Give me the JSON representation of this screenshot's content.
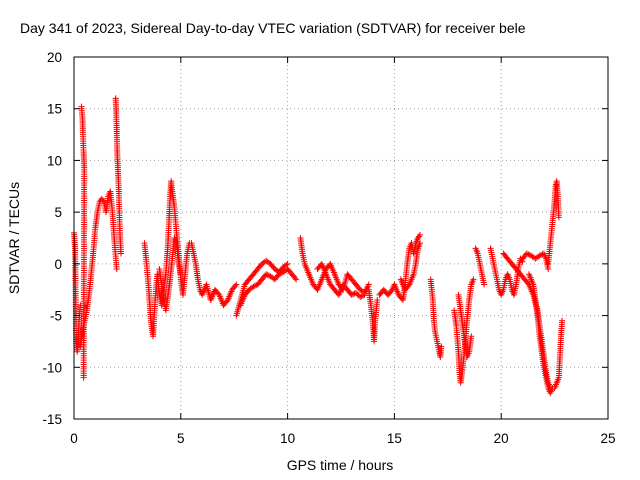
{
  "chart_data": {
    "type": "scatter",
    "title": "Day 341 of 2023, Sidereal Day-to-day VTEC variation (SDTVAR) for receiver bele",
    "xlabel": "GPS time / hours",
    "ylabel": "SDTVAR / TECUs",
    "xlim": [
      0,
      25
    ],
    "ylim": [
      -15,
      20
    ],
    "xticks": [
      0,
      5,
      10,
      15,
      20,
      25
    ],
    "yticks": [
      -15,
      -10,
      -5,
      0,
      5,
      10,
      15,
      20
    ],
    "xtick_labels": [
      "0",
      "5",
      "10",
      "15",
      "20",
      "25"
    ],
    "ytick_labels": [
      "-15",
      "-10",
      "-5",
      "0",
      "5",
      "10",
      "15",
      "20"
    ],
    "grid": true,
    "marker": "plus",
    "series": [
      {
        "name": "SDTVAR",
        "color": "#ff0000",
        "segments": [
          [
            [
              0.0,
              3.0
            ],
            [
              0.05,
              1.5
            ],
            [
              0.08,
              -3.5
            ],
            [
              0.1,
              -7.5
            ],
            [
              0.15,
              -8.5
            ],
            [
              0.2,
              -7.0
            ],
            [
              0.25,
              -5.0
            ],
            [
              0.3,
              -4.0
            ]
          ],
          [
            [
              0.35,
              15.2
            ],
            [
              0.4,
              14.0
            ],
            [
              0.42,
              12.5
            ],
            [
              0.45,
              10.8
            ],
            [
              0.48,
              9.3
            ],
            [
              0.45,
              -11.0
            ]
          ],
          [
            [
              0.3,
              -8.0
            ],
            [
              0.4,
              -6.5
            ],
            [
              0.5,
              -5.5
            ],
            [
              0.6,
              -4.5
            ],
            [
              0.7,
              -3.0
            ],
            [
              0.8,
              -1.0
            ],
            [
              0.9,
              1.0
            ],
            [
              1.0,
              3.5
            ],
            [
              1.1,
              5.0
            ],
            [
              1.2,
              6.0
            ],
            [
              1.3,
              6.3
            ],
            [
              1.4,
              6.0
            ],
            [
              1.5,
              5.0
            ],
            [
              1.6,
              6.5
            ],
            [
              1.7,
              7.0
            ],
            [
              1.8,
              5.0
            ],
            [
              1.9,
              2.0
            ],
            [
              2.0,
              -0.5
            ]
          ],
          [
            [
              1.95,
              16.0
            ],
            [
              1.98,
              14.5
            ],
            [
              2.0,
              13.0
            ],
            [
              2.02,
              11.0
            ],
            [
              2.05,
              9.5
            ],
            [
              2.08,
              8.0
            ],
            [
              2.1,
              6.8
            ],
            [
              2.15,
              3.0
            ],
            [
              2.2,
              1.0
            ]
          ],
          [
            [
              3.3,
              2.0
            ],
            [
              3.4,
              0.0
            ],
            [
              3.5,
              -2.5
            ],
            [
              3.6,
              -5.5
            ],
            [
              3.7,
              -7.0
            ],
            [
              3.8,
              -3.5
            ],
            [
              3.9,
              -1.0
            ],
            [
              4.0,
              -3.0
            ],
            [
              4.1,
              -4.0
            ],
            [
              4.2,
              -2.5
            ],
            [
              4.3,
              -1.0
            ],
            [
              4.4,
              2.0
            ],
            [
              4.5,
              6.5
            ],
            [
              4.55,
              8.0
            ],
            [
              4.6,
              7.0
            ],
            [
              4.7,
              5.5
            ],
            [
              4.8,
              3.0
            ],
            [
              4.9,
              1.0
            ],
            [
              5.0,
              -1.5
            ],
            [
              5.1,
              -3.0
            ],
            [
              5.2,
              -1.0
            ],
            [
              5.3,
              1.0
            ],
            [
              5.4,
              2.0
            ]
          ],
          [
            [
              4.0,
              -0.5
            ],
            [
              4.1,
              -2.0
            ],
            [
              4.2,
              -3.5
            ],
            [
              4.3,
              -4.5
            ],
            [
              4.4,
              -3.0
            ],
            [
              4.5,
              -1.5
            ],
            [
              4.6,
              0.5
            ],
            [
              4.7,
              2.5
            ],
            [
              4.8,
              2.0
            ],
            [
              4.9,
              0.0
            ],
            [
              5.0,
              -1.0
            ]
          ],
          [
            [
              5.5,
              2.0
            ],
            [
              5.6,
              1.0
            ],
            [
              5.7,
              0.0
            ],
            [
              5.8,
              -1.5
            ],
            [
              5.9,
              -2.5
            ],
            [
              6.0,
              -3.0
            ],
            [
              6.2,
              -2.0
            ],
            [
              6.4,
              -3.5
            ],
            [
              6.6,
              -2.5
            ],
            [
              6.8,
              -3.0
            ],
            [
              7.0,
              -4.0
            ],
            [
              7.2,
              -3.5
            ],
            [
              7.4,
              -2.5
            ],
            [
              7.6,
              -2.0
            ]
          ],
          [
            [
              7.6,
              -5.0
            ],
            [
              7.8,
              -3.5
            ],
            [
              8.0,
              -2.0
            ],
            [
              8.2,
              -1.5
            ],
            [
              8.4,
              -1.0
            ],
            [
              8.6,
              -0.5
            ],
            [
              8.8,
              0.0
            ],
            [
              9.0,
              0.3
            ],
            [
              9.2,
              0.0
            ],
            [
              9.4,
              -0.5
            ],
            [
              9.6,
              -0.8
            ],
            [
              9.8,
              -0.3
            ],
            [
              10.0,
              0.0
            ]
          ],
          [
            [
              7.8,
              -4.0
            ],
            [
              8.0,
              -3.0
            ],
            [
              8.2,
              -2.5
            ],
            [
              8.4,
              -2.2
            ],
            [
              8.6,
              -2.0
            ],
            [
              8.8,
              -1.5
            ],
            [
              9.0,
              -1.0
            ],
            [
              9.2,
              -1.2
            ],
            [
              9.4,
              -1.5
            ],
            [
              9.6,
              -1.0
            ],
            [
              9.8,
              -0.8
            ],
            [
              10.0,
              -0.5
            ],
            [
              10.2,
              -1.0
            ],
            [
              10.4,
              -1.5
            ]
          ],
          [
            [
              10.6,
              2.5
            ],
            [
              10.7,
              1.0
            ],
            [
              10.8,
              0.0
            ],
            [
              11.0,
              -1.0
            ],
            [
              11.2,
              -2.0
            ],
            [
              11.4,
              -2.5
            ],
            [
              11.6,
              -1.5
            ],
            [
              11.8,
              -0.5
            ],
            [
              12.0,
              0.0
            ],
            [
              12.2,
              -1.0
            ],
            [
              12.4,
              -2.0
            ],
            [
              12.6,
              -2.5
            ],
            [
              12.8,
              -1.0
            ],
            [
              13.0,
              -1.5
            ],
            [
              13.2,
              -2.0
            ],
            [
              13.4,
              -2.5
            ],
            [
              13.6,
              -2.8
            ],
            [
              13.8,
              -2.0
            ]
          ],
          [
            [
              11.4,
              -0.5
            ],
            [
              11.6,
              0.0
            ],
            [
              11.8,
              -1.0
            ],
            [
              12.0,
              -2.0
            ],
            [
              12.2,
              -2.5
            ],
            [
              12.4,
              -3.0
            ],
            [
              12.6,
              -2.0
            ],
            [
              12.8,
              -2.5
            ],
            [
              13.0,
              -3.0
            ],
            [
              13.2,
              -2.8
            ],
            [
              13.4,
              -3.2
            ],
            [
              13.6,
              -3.0
            ]
          ],
          [
            [
              13.8,
              -2.5
            ],
            [
              13.9,
              -4.0
            ],
            [
              14.0,
              -6.0
            ],
            [
              14.05,
              -7.5
            ],
            [
              14.1,
              -5.5
            ],
            [
              14.2,
              -3.5
            ]
          ],
          [
            [
              14.3,
              -3.0
            ],
            [
              14.5,
              -2.5
            ],
            [
              14.7,
              -3.0
            ],
            [
              14.9,
              -2.5
            ],
            [
              15.0,
              -2.0
            ],
            [
              15.2,
              -3.0
            ],
            [
              15.4,
              -3.5
            ],
            [
              15.5,
              -2.0
            ],
            [
              15.6,
              0.0
            ],
            [
              15.7,
              1.5
            ],
            [
              15.8,
              2.0
            ],
            [
              15.9,
              1.0
            ],
            [
              16.0,
              2.0
            ],
            [
              16.1,
              2.5
            ],
            [
              16.2,
              2.8
            ]
          ],
          [
            [
              15.3,
              -1.5
            ],
            [
              15.5,
              -2.5
            ],
            [
              15.7,
              -2.0
            ],
            [
              15.9,
              -1.0
            ],
            [
              16.0,
              0.0
            ],
            [
              16.1,
              1.5
            ],
            [
              16.2,
              2.0
            ]
          ],
          [
            [
              16.7,
              -1.5
            ],
            [
              16.75,
              -2.5
            ],
            [
              16.8,
              -3.5
            ],
            [
              16.85,
              -5.5
            ],
            [
              16.9,
              -6.5
            ],
            [
              17.0,
              -7.5
            ],
            [
              17.1,
              -8.5
            ],
            [
              17.15,
              -9.0
            ],
            [
              17.2,
              -8.0
            ]
          ],
          [
            [
              17.8,
              -4.5
            ],
            [
              17.9,
              -6.0
            ],
            [
              18.0,
              -8.5
            ],
            [
              18.05,
              -10.5
            ],
            [
              18.1,
              -11.5
            ],
            [
              18.2,
              -10.0
            ],
            [
              18.3,
              -8.0
            ],
            [
              18.4,
              -5.5
            ],
            [
              18.5,
              -3.5
            ],
            [
              18.6,
              -2.0
            ],
            [
              18.7,
              -1.5
            ]
          ],
          [
            [
              18.0,
              -3.0
            ],
            [
              18.1,
              -4.5
            ],
            [
              18.2,
              -6.0
            ],
            [
              18.3,
              -7.5
            ],
            [
              18.4,
              -9.0
            ],
            [
              18.5,
              -8.5
            ],
            [
              18.6,
              -7.0
            ]
          ],
          [
            [
              18.8,
              1.5
            ],
            [
              18.9,
              1.0
            ],
            [
              19.0,
              0.0
            ],
            [
              19.1,
              -1.0
            ],
            [
              19.2,
              -2.0
            ]
          ],
          [
            [
              19.5,
              1.5
            ],
            [
              19.6,
              0.5
            ],
            [
              19.7,
              -0.5
            ],
            [
              19.8,
              -1.5
            ],
            [
              19.9,
              -2.5
            ],
            [
              20.0,
              -3.0
            ],
            [
              20.1,
              -2.5
            ],
            [
              20.2,
              -1.5
            ],
            [
              20.3,
              -1.0
            ],
            [
              20.4,
              -1.5
            ],
            [
              20.5,
              -2.5
            ],
            [
              20.6,
              -3.0
            ],
            [
              20.7,
              -2.0
            ],
            [
              20.8,
              -0.5
            ],
            [
              20.9,
              0.5
            ],
            [
              21.0,
              0.2
            ]
          ],
          [
            [
              20.1,
              1.0
            ],
            [
              20.3,
              0.5
            ],
            [
              20.5,
              0.0
            ],
            [
              20.7,
              -0.5
            ],
            [
              20.9,
              -1.0
            ],
            [
              21.1,
              -1.5
            ],
            [
              21.3,
              -2.0
            ],
            [
              21.5,
              -3.0
            ],
            [
              21.7,
              -4.5
            ],
            [
              21.8,
              -6.0
            ],
            [
              21.9,
              -7.5
            ],
            [
              22.0,
              -9.0
            ],
            [
              22.1,
              -10.5
            ],
            [
              22.2,
              -11.5
            ],
            [
              22.3,
              -12.0
            ]
          ],
          [
            [
              21.0,
              0.5
            ],
            [
              21.2,
              1.0
            ],
            [
              21.4,
              0.8
            ],
            [
              21.6,
              0.5
            ],
            [
              21.8,
              0.8
            ],
            [
              22.0,
              1.0
            ],
            [
              22.1,
              0.5
            ],
            [
              22.2,
              -0.5
            ]
          ],
          [
            [
              21.3,
              -1.0
            ],
            [
              21.5,
              -2.0
            ],
            [
              21.6,
              -3.5
            ],
            [
              21.7,
              -5.0
            ],
            [
              21.8,
              -7.0
            ],
            [
              21.9,
              -8.5
            ],
            [
              22.0,
              -10.0
            ],
            [
              22.1,
              -11.0
            ],
            [
              22.2,
              -12.0
            ],
            [
              22.3,
              -12.5
            ],
            [
              22.4,
              -12.0
            ]
          ],
          [
            [
              22.2,
              0.0
            ],
            [
              22.3,
              2.0
            ],
            [
              22.4,
              4.0
            ],
            [
              22.5,
              6.0
            ],
            [
              22.55,
              7.5
            ],
            [
              22.6,
              8.0
            ],
            [
              22.65,
              6.5
            ],
            [
              22.7,
              4.5
            ]
          ],
          [
            [
              22.5,
              -12.0
            ],
            [
              22.6,
              -11.5
            ],
            [
              22.7,
              -11.0
            ],
            [
              22.75,
              -9.0
            ],
            [
              22.8,
              -7.0
            ],
            [
              22.85,
              -5.5
            ]
          ]
        ]
      }
    ]
  }
}
